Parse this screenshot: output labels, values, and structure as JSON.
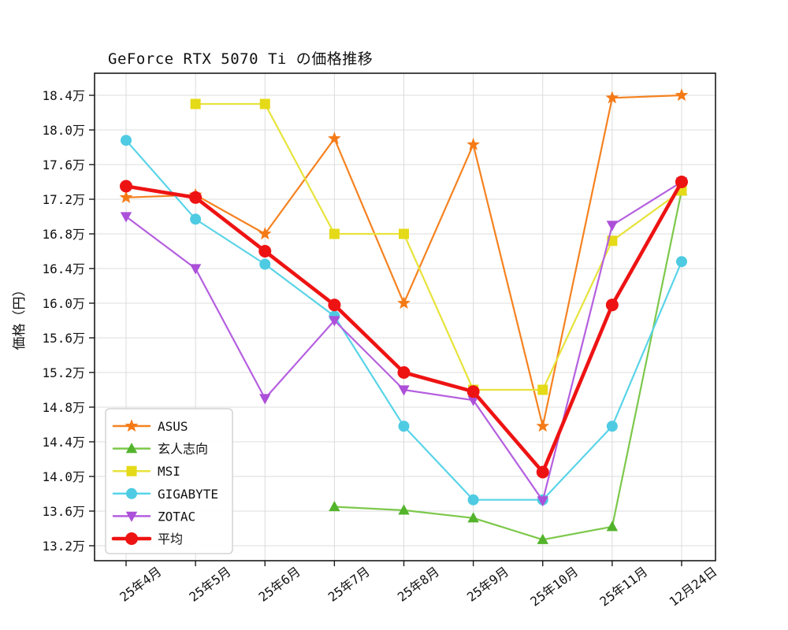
{
  "chart_data": {
    "type": "line",
    "title": "GeForce RTX 5070 Ti の価格推移",
    "xlabel": "",
    "ylabel": "価格（円）",
    "y_unit": "万",
    "ytick_values": [
      18.4,
      18.0,
      17.6,
      17.2,
      16.8,
      16.4,
      16.0,
      15.6,
      15.2,
      14.8,
      14.4,
      14.0,
      13.6,
      13.2
    ],
    "ylim": [
      13.03,
      18.65
    ],
    "grid": true,
    "legend_position": "lower-left",
    "categories": [
      "25年4月",
      "25年5月",
      "25年6月",
      "25年7月",
      "25年8月",
      "25年9月",
      "25年10月",
      "25年11月",
      "12月24日"
    ],
    "series": [
      {
        "name": "ASUS",
        "color": "#f58220",
        "marker_color": "#f57a16",
        "marker": "star",
        "emphasis": false,
        "values": [
          17.22,
          17.25,
          16.8,
          17.9,
          16.0,
          17.83,
          14.58,
          18.37,
          18.4
        ]
      },
      {
        "name": "玄人志向",
        "color": "#7dc84b",
        "marker_color": "#53b42c",
        "marker": "triangle-up",
        "emphasis": false,
        "values": [
          null,
          null,
          null,
          13.65,
          13.61,
          13.52,
          13.27,
          13.42,
          17.3
        ]
      },
      {
        "name": "MSI",
        "color": "#e7e33c",
        "marker_color": "#e5da18",
        "marker": "square",
        "emphasis": false,
        "values": [
          null,
          18.3,
          18.3,
          16.8,
          16.8,
          15.0,
          15.0,
          16.72,
          17.3
        ]
      },
      {
        "name": "GIGABYTE",
        "color": "#59d4e8",
        "marker_color": "#4ecbe2",
        "marker": "circle",
        "emphasis": false,
        "values": [
          17.88,
          16.97,
          16.45,
          15.85,
          14.58,
          13.73,
          13.73,
          14.58,
          16.48
        ]
      },
      {
        "name": "ZOTAC",
        "color": "#b55fe0",
        "marker_color": "#ac4fd9",
        "marker": "triangle-down",
        "emphasis": false,
        "values": [
          17.0,
          16.4,
          14.9,
          15.8,
          15.0,
          14.88,
          13.72,
          16.9,
          17.4
        ]
      },
      {
        "name": "平均",
        "color": "#ee1313",
        "marker_color": "#ee1313",
        "marker": "circle",
        "emphasis": true,
        "values": [
          17.35,
          17.22,
          16.6,
          15.98,
          15.2,
          14.98,
          14.05,
          15.98,
          17.4
        ]
      }
    ]
  }
}
